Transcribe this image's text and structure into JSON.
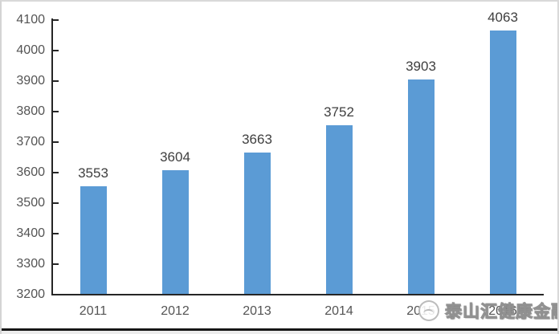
{
  "chart_data": {
    "type": "bar",
    "title": "",
    "xlabel": "",
    "ylabel": "",
    "categories": [
      "2011",
      "2012",
      "2013",
      "2014",
      "2015",
      "2016"
    ],
    "values": [
      3553,
      3604,
      3663,
      3752,
      3903,
      4063
    ],
    "data_labels": [
      "3553",
      "3604",
      "3663",
      "3752",
      "3903",
      "4063"
    ],
    "ylim": [
      3200,
      4100
    ],
    "yticks": [
      3200,
      3300,
      3400,
      3500,
      3600,
      3700,
      3800,
      3900,
      4000,
      4100
    ],
    "grid": false,
    "legend": "none",
    "bar_color": "#5B9BD5",
    "axis_color": "#262626",
    "label_color": "#3f3f3f",
    "tick_label_color": "#545454"
  },
  "watermark": {
    "text": "泰山汇健康金融",
    "logo": "mountain-circle-logo"
  }
}
